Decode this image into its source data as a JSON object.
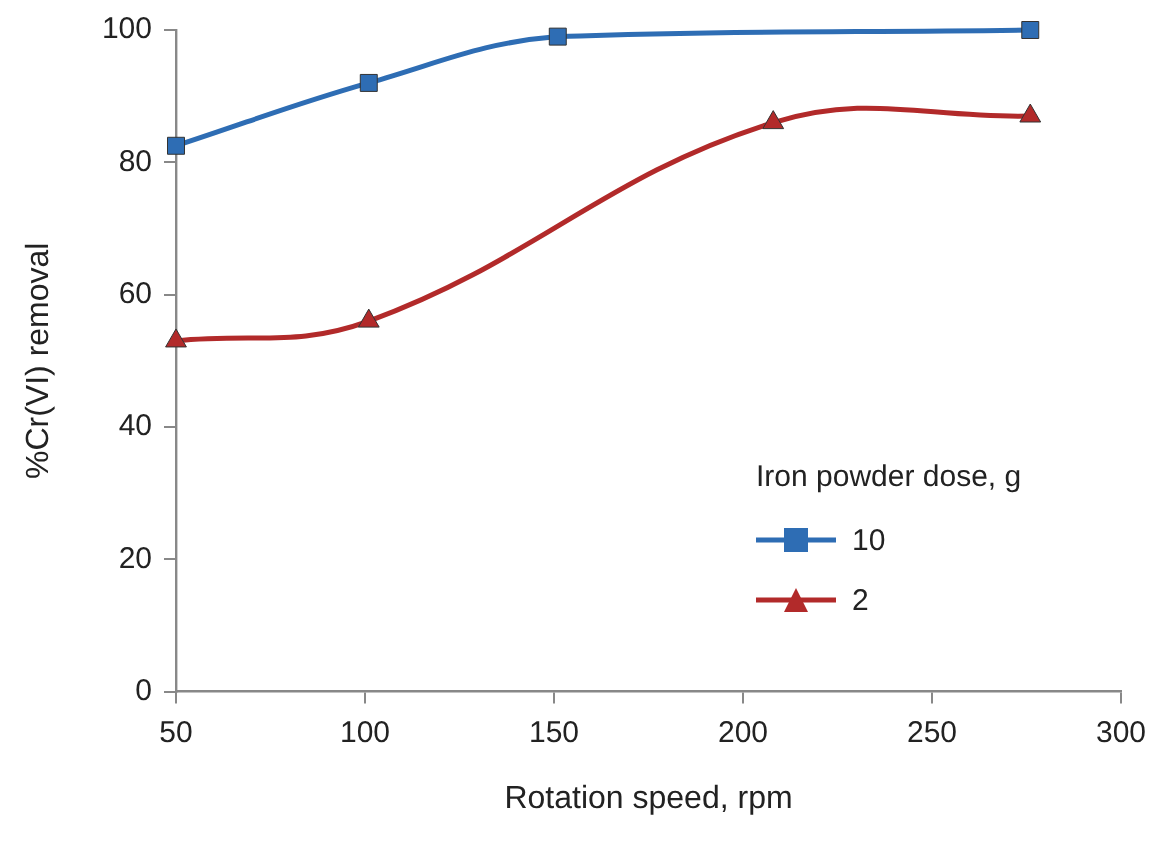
{
  "chart_data": {
    "type": "line",
    "xlabel": "Rotation speed, rpm",
    "ylabel": "%Cr(VI) removal",
    "legend_title": "Iron powder dose, g",
    "legend": "right",
    "grid": false,
    "xlim": [
      50,
      300
    ],
    "xticks": [
      50,
      100,
      150,
      200,
      250,
      300
    ],
    "ylim": [
      0,
      100
    ],
    "yticks": [
      0,
      20,
      40,
      60,
      80,
      100
    ],
    "series": [
      {
        "name": "10",
        "color": "#2e6db4",
        "marker": "square",
        "x": [
          50,
          101,
          151,
          276
        ],
        "values": [
          82.5,
          92,
          99,
          100
        ]
      },
      {
        "name": "2",
        "color": "#b22a2a",
        "marker": "triangle",
        "x": [
          50,
          101,
          208,
          276
        ],
        "values": [
          53,
          56,
          86,
          87
        ]
      }
    ]
  }
}
